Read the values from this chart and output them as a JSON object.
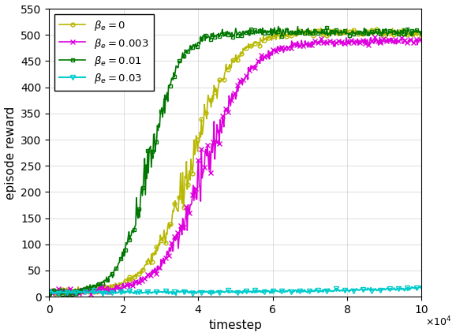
{
  "title": "",
  "xlabel": "timestep",
  "ylabel": "episode reward",
  "xlim": [
    0,
    100000
  ],
  "ylim": [
    0,
    550
  ],
  "yticks": [
    0,
    50,
    100,
    150,
    200,
    250,
    300,
    350,
    400,
    450,
    500,
    550
  ],
  "xticks": [
    0,
    20000,
    40000,
    60000,
    80000,
    100000
  ],
  "xtick_labels": [
    "0",
    "2",
    "4",
    "6",
    "8",
    "10"
  ],
  "series": [
    {
      "label": "$\\beta_{e}=0$",
      "color": "#b8b800",
      "marker": "o",
      "marker_size": 3.5,
      "line_width": 1.2,
      "inflection": 38000,
      "steepness": 0.00018,
      "plateau": 505,
      "start": 8,
      "noise_scale": 12,
      "marker_every": 0.012
    },
    {
      "label": "$\\beta_{e}=0.003$",
      "color": "#dd00dd",
      "marker": "x",
      "marker_size": 4.5,
      "line_width": 1.2,
      "inflection": 42000,
      "steepness": 0.00017,
      "plateau": 488,
      "start": 8,
      "noise_scale": 12,
      "marker_every": 0.008
    },
    {
      "label": "$\\beta_{e}=0.01$",
      "color": "#007700",
      "marker": "s",
      "marker_size": 3.5,
      "line_width": 1.2,
      "inflection": 27000,
      "steepness": 0.00025,
      "plateau": 505,
      "start": 8,
      "noise_scale": 12,
      "marker_every": 0.012
    },
    {
      "label": "$\\beta_{e}=0.03$",
      "color": "#00cccc",
      "marker": "v",
      "marker_size": 4.0,
      "line_width": 1.5,
      "inflection": 200000,
      "steepness": 3.5e-05,
      "plateau": 300,
      "start": 8,
      "noise_scale": 5,
      "marker_every": 0.025
    }
  ],
  "grid_color": "#d0d0d0",
  "grid_linestyle": "-",
  "grid_linewidth": 0.5,
  "legend_fontsize": 9.5,
  "axis_fontsize": 11,
  "tick_fontsize": 10,
  "background_color": "#ffffff"
}
